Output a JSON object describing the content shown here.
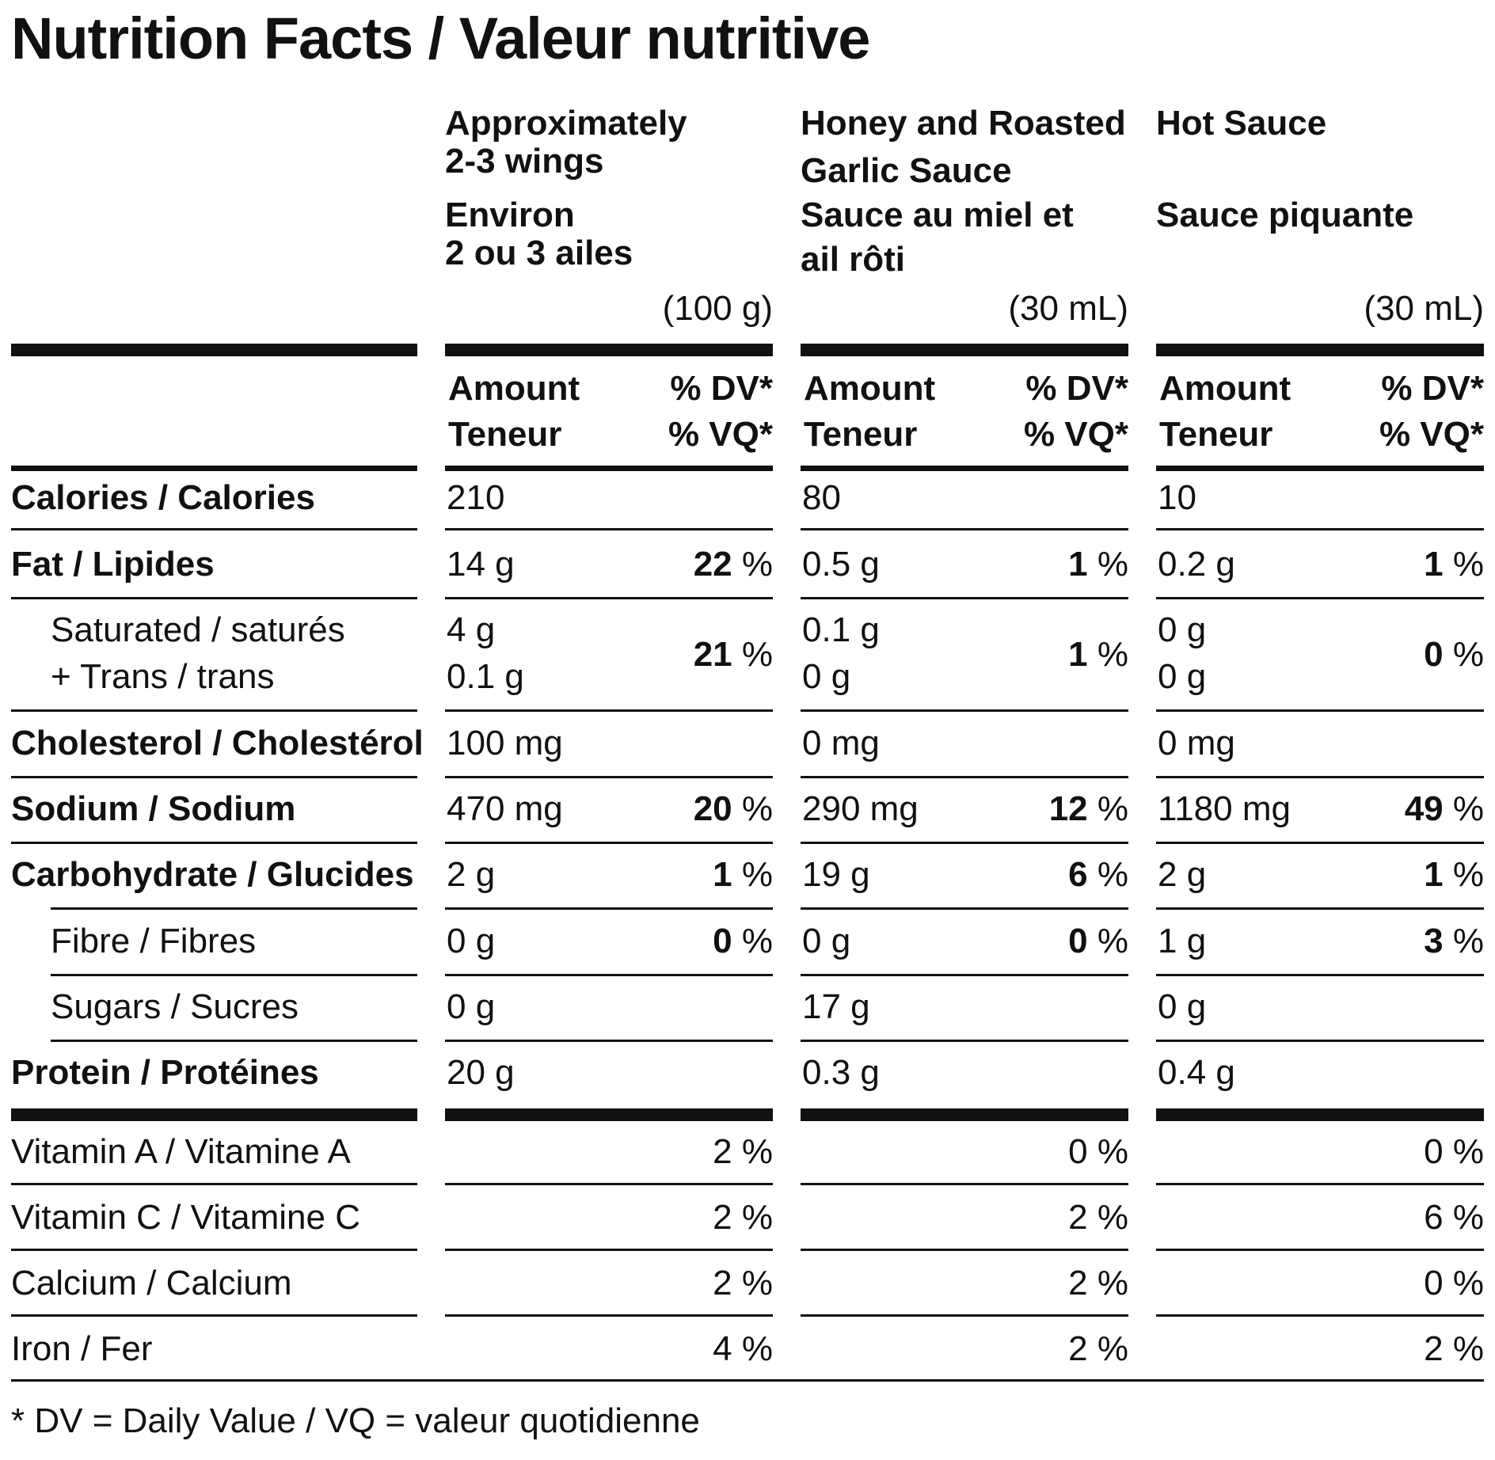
{
  "title": "Nutrition Facts / Valeur nutritive",
  "columns": [
    {
      "head_en_1": "Approximately",
      "head_en_2": "2-3 wings",
      "head_fr_1": "Environ",
      "head_fr_2": "2 ou 3 ailes",
      "serving": "(100 g)"
    },
    {
      "head_en_1": "Honey and Roasted",
      "head_en_2": "Garlic Sauce",
      "head_fr_1": "Sauce au miel et",
      "head_fr_2": "ail rôti",
      "serving": "(30 mL)"
    },
    {
      "head_en_1": "Hot Sauce",
      "head_en_2": "",
      "head_fr_1": "Sauce piquante",
      "head_fr_2": "",
      "serving": "(30 mL)"
    }
  ],
  "amount_label_1": "Amount",
  "amount_label_2": "Teneur",
  "dv_label_1": "% DV*",
  "dv_label_2": "% VQ*",
  "percent_sign": "%",
  "rows": {
    "calories": {
      "label": "Calories / Calories",
      "values": [
        {
          "amt": "210",
          "dv": ""
        },
        {
          "amt": "80",
          "dv": ""
        },
        {
          "amt": "10",
          "dv": ""
        }
      ]
    },
    "fat": {
      "label": "Fat / Lipides",
      "values": [
        {
          "amt": "14 g",
          "dv": "22"
        },
        {
          "amt": "0.5 g",
          "dv": "1"
        },
        {
          "amt": "0.2 g",
          "dv": "1"
        }
      ]
    },
    "saturated": {
      "label_1": "Saturated / saturés",
      "label_2": "+ Trans / trans",
      "values": [
        {
          "amt_1": "4 g",
          "amt_2": "0.1 g",
          "dv": "21"
        },
        {
          "amt_1": "0.1 g",
          "amt_2": "0 g",
          "dv": "1"
        },
        {
          "amt_1": "0 g",
          "amt_2": "0 g",
          "dv": "0"
        }
      ]
    },
    "cholesterol": {
      "label": "Cholesterol / Cholestérol",
      "values": [
        {
          "amt": "100 mg",
          "dv": ""
        },
        {
          "amt": "0 mg",
          "dv": ""
        },
        {
          "amt": "0 mg",
          "dv": ""
        }
      ]
    },
    "sodium": {
      "label": "Sodium / Sodium",
      "values": [
        {
          "amt": "470 mg",
          "dv": "20"
        },
        {
          "amt": "290 mg",
          "dv": "12"
        },
        {
          "amt": "1180 mg",
          "dv": "49"
        }
      ]
    },
    "carbohydrate": {
      "label": "Carbohydrate / Glucides",
      "values": [
        {
          "amt": "2 g",
          "dv": "1"
        },
        {
          "amt": "19 g",
          "dv": "6"
        },
        {
          "amt": "2 g",
          "dv": "1"
        }
      ]
    },
    "fibre": {
      "label": "Fibre / Fibres",
      "values": [
        {
          "amt": "0 g",
          "dv": "0"
        },
        {
          "amt": "0 g",
          "dv": "0"
        },
        {
          "amt": "1 g",
          "dv": "3"
        }
      ]
    },
    "sugars": {
      "label": "Sugars / Sucres",
      "values": [
        {
          "amt": "0 g",
          "dv": ""
        },
        {
          "amt": "17 g",
          "dv": ""
        },
        {
          "amt": "0 g",
          "dv": ""
        }
      ]
    },
    "protein": {
      "label": "Protein / Protéines",
      "values": [
        {
          "amt": "20 g",
          "dv": ""
        },
        {
          "amt": "0.3 g",
          "dv": ""
        },
        {
          "amt": "0.4 g",
          "dv": ""
        }
      ]
    }
  },
  "vitamins": [
    {
      "label": "Vitamin A / Vitamine A",
      "values": [
        "2 %",
        "0 %",
        "0 %"
      ]
    },
    {
      "label": "Vitamin C / Vitamine C",
      "values": [
        "2 %",
        "2 %",
        "6 %"
      ]
    },
    {
      "label": "Calcium / Calcium",
      "values": [
        "2 %",
        "2 %",
        "0 %"
      ]
    },
    {
      "label": "Iron / Fer",
      "values": [
        "4 %",
        "2 %",
        "2 %"
      ]
    }
  ],
  "footnote": "* DV = Daily Value / VQ = valeur quotidienne"
}
